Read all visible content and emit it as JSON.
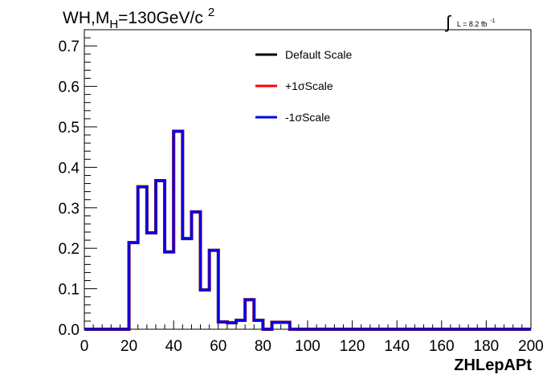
{
  "chart_data": {
    "type": "line",
    "style": "step-histogram",
    "title": {
      "prefix": "WH,M",
      "subscript": "H",
      "suffix": "=130GeV/c",
      "superscript": "2"
    },
    "lumi": {
      "integral_sign": "∫",
      "text": "L = 8.2 fb",
      "superscript": "-1"
    },
    "xlabel": "ZHLepAPt",
    "ylabel": "",
    "xlim": [
      0,
      200
    ],
    "ylim": [
      0,
      0.74
    ],
    "x_ticks": [
      0,
      20,
      40,
      60,
      80,
      100,
      120,
      140,
      160,
      180,
      200
    ],
    "x_tick_labels": [
      "0",
      "20",
      "40",
      "60",
      "80",
      "100",
      "120",
      "140",
      "160",
      "180",
      "200"
    ],
    "y_ticks": [
      0,
      0.1,
      0.2,
      0.3,
      0.4,
      0.5,
      0.6,
      0.7
    ],
    "y_tick_labels": [
      "0.0",
      "0.1",
      "0.2",
      "0.3",
      "0.4",
      "0.5",
      "0.6",
      "0.7"
    ],
    "grid": false,
    "legend_position": "top-center",
    "bin_edges": [
      0,
      4,
      8,
      12,
      16,
      20,
      24,
      28,
      32,
      36,
      40,
      44,
      48,
      52,
      56,
      60,
      64,
      68,
      72,
      76,
      80,
      84,
      88,
      92,
      96,
      100,
      104,
      108,
      112,
      116,
      120,
      124,
      128,
      132,
      136,
      140,
      144,
      148,
      152,
      156,
      160,
      164,
      168,
      172,
      176,
      180,
      184,
      188,
      192,
      196,
      200
    ],
    "series": [
      {
        "name": "Default Scale",
        "color": "#000000",
        "values": [
          0,
          0,
          0,
          0,
          0,
          0.214,
          0.352,
          0.238,
          0.367,
          0.191,
          0.489,
          0.224,
          0.29,
          0.097,
          0.195,
          0.018,
          0.016,
          0.022,
          0.073,
          0.022,
          0,
          0.017,
          0.017,
          0,
          0,
          0,
          0,
          0,
          0,
          0,
          0,
          0,
          0,
          0,
          0,
          0,
          0,
          0,
          0,
          0,
          0,
          0,
          0,
          0,
          0,
          0,
          0,
          0,
          0,
          0
        ]
      },
      {
        "name": "+1σScale",
        "color": "#ff0000",
        "values": [
          0,
          0,
          0,
          0,
          0,
          0.214,
          0.352,
          0.238,
          0.367,
          0.191,
          0.489,
          0.224,
          0.29,
          0.097,
          0.195,
          0.018,
          0.016,
          0.022,
          0.073,
          0.022,
          0,
          0.017,
          0.017,
          0,
          0,
          0,
          0,
          0,
          0,
          0,
          0,
          0,
          0,
          0,
          0,
          0,
          0,
          0,
          0,
          0,
          0,
          0,
          0,
          0,
          0,
          0,
          0,
          0,
          0,
          0
        ]
      },
      {
        "name": "-1σScale",
        "color": "#0000ee",
        "values": [
          0,
          0,
          0,
          0,
          0,
          0.214,
          0.352,
          0.238,
          0.367,
          0.191,
          0.489,
          0.224,
          0.29,
          0.097,
          0.195,
          0.018,
          0.016,
          0.022,
          0.073,
          0.022,
          0,
          0.017,
          0.017,
          0,
          0,
          0,
          0,
          0,
          0,
          0,
          0,
          0,
          0,
          0,
          0,
          0,
          0,
          0,
          0,
          0,
          0,
          0,
          0,
          0,
          0,
          0,
          0,
          0,
          0,
          0
        ]
      }
    ]
  }
}
